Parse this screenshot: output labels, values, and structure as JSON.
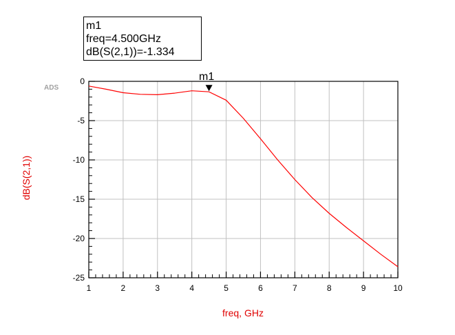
{
  "chart_data": {
    "type": "line",
    "title": "",
    "xlabel": "freq, GHz",
    "ylabel": "dB(S(2,1))",
    "xlim": [
      1,
      10
    ],
    "ylim": [
      -25,
      0
    ],
    "grid": true,
    "x_ticks": [
      "1",
      "2",
      "3",
      "4",
      "5",
      "6",
      "7",
      "8",
      "9",
      "10"
    ],
    "y_ticks": [
      "0",
      "-5",
      "-10",
      "-15",
      "-20",
      "-25"
    ],
    "line_color": "#ff0000",
    "series": [
      {
        "x": [
          1.0,
          1.5,
          2.0,
          2.5,
          3.0,
          3.5,
          4.0,
          4.5,
          5.0,
          5.5,
          6.0,
          6.5,
          7.0,
          7.5,
          8.0,
          8.5,
          9.0,
          9.5,
          10.0
        ],
        "y": [
          -0.6,
          -1.0,
          -1.45,
          -1.65,
          -1.7,
          -1.5,
          -1.2,
          -1.334,
          -2.4,
          -4.7,
          -7.3,
          -10.0,
          -12.5,
          -14.8,
          -16.8,
          -18.6,
          -20.3,
          -22.0,
          -23.6
        ]
      }
    ],
    "marker": {
      "name": "m1",
      "x": 4.5,
      "y": -1.334,
      "info_lines": [
        "m1",
        "freq=4.500GHz",
        "dB(S(2,1))=-1.334"
      ]
    }
  },
  "watermark": "ADS"
}
